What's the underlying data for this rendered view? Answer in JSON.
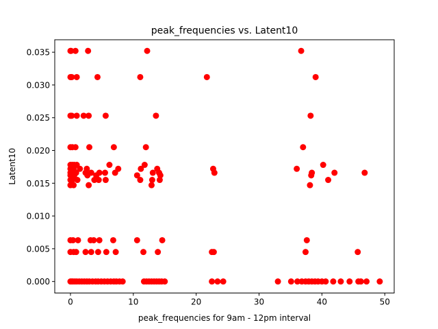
{
  "chart_data": {
    "type": "scatter",
    "title": "peak_frequencies vs. Latent10",
    "xlabel": "peak_frequencies for 9am - 12pm interval",
    "ylabel": "Latent10",
    "xlim": [
      -2.5,
      51.5
    ],
    "ylim": [
      -0.00176,
      0.0369
    ],
    "xticks": [
      0,
      10,
      20,
      30,
      40,
      50
    ],
    "xtick_labels": [
      "0",
      "10",
      "20",
      "30",
      "40",
      "50"
    ],
    "yticks": [
      0.0,
      0.005,
      0.01,
      0.015,
      0.02,
      0.025,
      0.03,
      0.035
    ],
    "ytick_labels": [
      "0.000",
      "0.005",
      "0.010",
      "0.015",
      "0.020",
      "0.025",
      "0.030",
      "0.035"
    ],
    "grid": false,
    "color": "#ff0000",
    "series": [
      {
        "points": [
          [
            0.0,
            0.0352
          ],
          [
            0.1,
            0.0352
          ],
          [
            0.8,
            0.0352
          ],
          [
            2.8,
            0.0352
          ],
          [
            12.2,
            0.0352
          ],
          [
            36.7,
            0.0352
          ],
          [
            0.0,
            0.0312
          ],
          [
            0.2,
            0.0312
          ],
          [
            1.0,
            0.0312
          ],
          [
            4.3,
            0.0312
          ],
          [
            11.1,
            0.0312
          ],
          [
            21.7,
            0.0312
          ],
          [
            39.0,
            0.0312
          ],
          [
            0.0,
            0.0253
          ],
          [
            0.2,
            0.0253
          ],
          [
            1.0,
            0.0253
          ],
          [
            2.1,
            0.0253
          ],
          [
            2.9,
            0.0253
          ],
          [
            5.6,
            0.0253
          ],
          [
            13.6,
            0.0253
          ],
          [
            38.2,
            0.0253
          ],
          [
            0.0,
            0.0205
          ],
          [
            0.3,
            0.0205
          ],
          [
            0.8,
            0.0205
          ],
          [
            3.0,
            0.0205
          ],
          [
            6.9,
            0.0205
          ],
          [
            12.0,
            0.0205
          ],
          [
            37.0,
            0.0205
          ],
          [
            0.0,
            0.0178
          ],
          [
            0.3,
            0.0178
          ],
          [
            0.6,
            0.0178
          ],
          [
            1.0,
            0.0178
          ],
          [
            6.2,
            0.0178
          ],
          [
            11.8,
            0.0178
          ],
          [
            40.2,
            0.0178
          ],
          [
            0.0,
            0.0172
          ],
          [
            0.5,
            0.0172
          ],
          [
            1.5,
            0.0172
          ],
          [
            2.6,
            0.0172
          ],
          [
            7.6,
            0.0172
          ],
          [
            11.2,
            0.0172
          ],
          [
            13.8,
            0.0172
          ],
          [
            22.7,
            0.0172
          ],
          [
            36.0,
            0.0172
          ],
          [
            0.0,
            0.0166
          ],
          [
            0.4,
            0.0166
          ],
          [
            0.9,
            0.0166
          ],
          [
            2.4,
            0.0166
          ],
          [
            3.3,
            0.0166
          ],
          [
            4.6,
            0.0166
          ],
          [
            5.5,
            0.0166
          ],
          [
            7.1,
            0.0166
          ],
          [
            13.1,
            0.0166
          ],
          [
            14.1,
            0.0166
          ],
          [
            22.9,
            0.0166
          ],
          [
            38.4,
            0.0166
          ],
          [
            42.0,
            0.0166
          ],
          [
            46.8,
            0.0166
          ],
          [
            0.0,
            0.0162
          ],
          [
            0.6,
            0.0162
          ],
          [
            2.7,
            0.0162
          ],
          [
            4.1,
            0.0162
          ],
          [
            10.6,
            0.0162
          ],
          [
            14.3,
            0.0162
          ],
          [
            38.3,
            0.0162
          ],
          [
            0.0,
            0.0155
          ],
          [
            0.3,
            0.0155
          ],
          [
            1.1,
            0.0155
          ],
          [
            3.8,
            0.0155
          ],
          [
            4.5,
            0.0155
          ],
          [
            5.6,
            0.0155
          ],
          [
            11.1,
            0.0155
          ],
          [
            13.0,
            0.0155
          ],
          [
            14.2,
            0.0155
          ],
          [
            41.0,
            0.0155
          ],
          [
            0.0,
            0.0147
          ],
          [
            0.5,
            0.0147
          ],
          [
            2.9,
            0.0147
          ],
          [
            12.9,
            0.0147
          ],
          [
            38.1,
            0.0147
          ],
          [
            0.0,
            0.0063
          ],
          [
            0.4,
            0.0063
          ],
          [
            1.2,
            0.0063
          ],
          [
            3.2,
            0.0063
          ],
          [
            3.7,
            0.0063
          ],
          [
            4.6,
            0.0063
          ],
          [
            6.8,
            0.0063
          ],
          [
            10.6,
            0.0063
          ],
          [
            14.6,
            0.0063
          ],
          [
            37.6,
            0.0063
          ],
          [
            0.0,
            0.0045
          ],
          [
            0.5,
            0.0045
          ],
          [
            0.9,
            0.0045
          ],
          [
            2.4,
            0.0045
          ],
          [
            3.3,
            0.0045
          ],
          [
            4.4,
            0.0045
          ],
          [
            5.7,
            0.0045
          ],
          [
            7.2,
            0.0045
          ],
          [
            11.6,
            0.0045
          ],
          [
            13.9,
            0.0045
          ],
          [
            22.5,
            0.0045
          ],
          [
            22.8,
            0.0045
          ],
          [
            37.4,
            0.0045
          ],
          [
            45.7,
            0.0045
          ],
          [
            0.0,
            0.0
          ],
          [
            0.2,
            0.0
          ],
          [
            0.4,
            0.0
          ],
          [
            0.7,
            0.0
          ],
          [
            1.0,
            0.0
          ],
          [
            1.4,
            0.0
          ],
          [
            1.8,
            0.0
          ],
          [
            2.2,
            0.0
          ],
          [
            2.6,
            0.0
          ],
          [
            3.0,
            0.0
          ],
          [
            3.5,
            0.0
          ],
          [
            4.0,
            0.0
          ],
          [
            4.4,
            0.0
          ],
          [
            4.9,
            0.0
          ],
          [
            5.4,
            0.0
          ],
          [
            5.9,
            0.0
          ],
          [
            6.4,
            0.0
          ],
          [
            6.9,
            0.0
          ],
          [
            7.3,
            0.0
          ],
          [
            7.8,
            0.0
          ],
          [
            8.3,
            0.0
          ],
          [
            11.7,
            0.0
          ],
          [
            12.1,
            0.0
          ],
          [
            12.5,
            0.0
          ],
          [
            12.9,
            0.0
          ],
          [
            13.3,
            0.0
          ],
          [
            13.7,
            0.0
          ],
          [
            14.1,
            0.0
          ],
          [
            14.5,
            0.0
          ],
          [
            15.0,
            0.0
          ],
          [
            22.5,
            0.0
          ],
          [
            23.4,
            0.0
          ],
          [
            24.3,
            0.0
          ],
          [
            33.0,
            0.0
          ],
          [
            35.1,
            0.0
          ],
          [
            36.1,
            0.0
          ],
          [
            36.8,
            0.0
          ],
          [
            37.4,
            0.0
          ],
          [
            37.9,
            0.0
          ],
          [
            38.4,
            0.0
          ],
          [
            38.9,
            0.0
          ],
          [
            39.4,
            0.0
          ],
          [
            40.0,
            0.0
          ],
          [
            40.6,
            0.0
          ],
          [
            41.8,
            0.0
          ],
          [
            43.0,
            0.0
          ],
          [
            44.4,
            0.0
          ],
          [
            45.8,
            0.0
          ],
          [
            46.2,
            0.0
          ],
          [
            47.1,
            0.0
          ],
          [
            49.2,
            0.0
          ]
        ]
      }
    ]
  }
}
